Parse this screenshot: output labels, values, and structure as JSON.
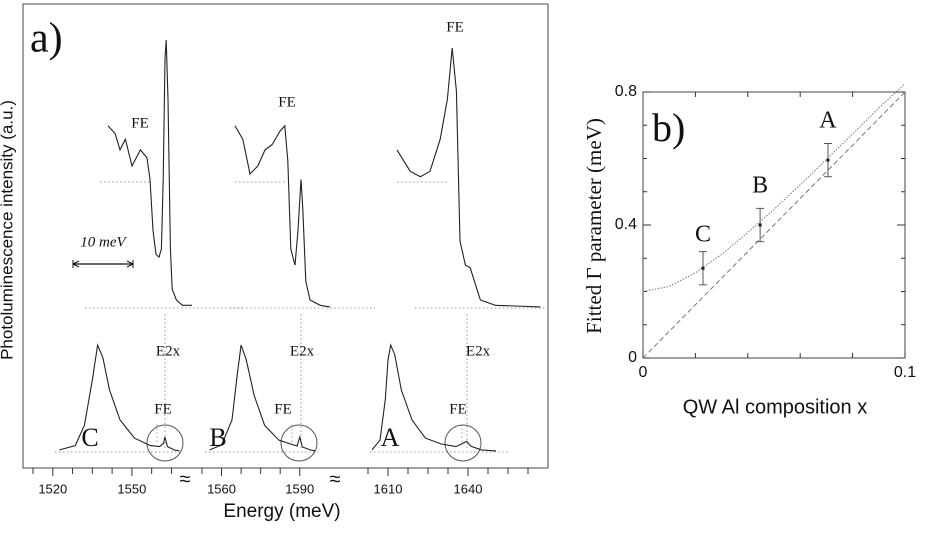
{
  "chart_data": [
    {
      "type": "spectra",
      "panel_label": "a)",
      "xlabel": "Energy (meV)",
      "ylabel": "Photoluminescence  intensity (a.u.)",
      "segments": [
        {
          "xlim": [
            1512.5,
            1569
          ],
          "xticks": [
            1520,
            1550
          ],
          "xminor": [
            1512.5,
            1527.5,
            1535,
            1542.5,
            1557.5,
            1565
          ]
        },
        {
          "xlim": [
            1552.5,
            1597
          ],
          "xticks": [
            1560,
            1590
          ],
          "xminor": [
            1552.5,
            1567.5,
            1575,
            1582.5
          ]
        },
        {
          "xlim": [
            1602.5,
            1670
          ],
          "xticks": [
            1610,
            1640
          ],
          "xminor": [
            1602.5,
            1617.5,
            1625,
            1632.5,
            1647.5,
            1655,
            1662.5
          ]
        }
      ],
      "scale_bar": {
        "label": "10 meV",
        "value": 10
      },
      "spectra": [
        {
          "label": "C",
          "labels": {
            "fe_zoom": "FE",
            "fe": "FE",
            "e2x": "E2x"
          },
          "pl": {
            "x": [
              1522.5,
              1528.5,
              1532,
              1535,
              1537,
              1539,
              1541.5,
              1545.5,
              1551,
              1557,
              1560.5,
              1562,
              1562.5,
              1563.5,
              1566,
              1568
            ],
            "y": [
              2,
              6,
              25,
              67,
              100,
              88,
              58,
              30,
              13,
              6,
              5,
              8,
              14,
              5,
              2,
              1
            ]
          },
          "zoom": {
            "x": [
              1552.8,
              1554.0,
              1554.8,
              1555.7,
              1556.8,
              1558.2,
              1559.3,
              1559.8,
              1560.3,
              1560.8,
              1561.3,
              1561.7,
              1562.0,
              1562.3,
              1562.5,
              1562.8,
              1563.2,
              1563.5,
              1564.2,
              1565.2,
              1566.8
            ],
            "y": [
              68,
              65,
              59,
              63,
              53,
              59,
              56,
              48,
              29,
              20,
              19,
              22,
              48,
              93,
              100,
              78,
              22,
              7,
              3,
              1,
              1
            ]
          }
        },
        {
          "label": "B",
          "labels": {
            "fe_zoom": "FE",
            "fe": "FE",
            "e2x": "E2x"
          },
          "pl": {
            "x": [
              1555.5,
              1560,
              1564,
              1566,
              1567.5,
              1569.5,
              1572.5,
              1576.5,
              1582,
              1586.5,
              1589,
              1590,
              1591,
              1594,
              1596
            ],
            "y": [
              2,
              6.5,
              30,
              72,
              100,
              86,
              53,
              25,
              11,
              7.5,
              5.6,
              14,
              4.7,
              2,
              1
            ]
          },
          "zoom": {
            "x": [
              1579.0,
              1580.3,
              1581.5,
              1582.8,
              1584.0,
              1585.2,
              1586.5,
              1587.3,
              1587.8,
              1588.3,
              1589.0,
              1589.5,
              1590.0,
              1590.3,
              1590.8,
              1591.5,
              1593.2,
              1594.8
            ],
            "y": [
              68,
              63,
              50,
              53,
              59,
              61,
              66,
              68,
              55,
              22,
              16,
              29,
              48,
              37,
              10,
              3,
              1,
              0.4
            ]
          }
        },
        {
          "label": "A",
          "labels": {
            "fe_zoom": "FE",
            "fe": "FE",
            "e2x": "E2x"
          },
          "pl": {
            "x": [
              1604,
              1607,
              1609,
              1610,
              1611,
              1612.5,
              1615,
              1619,
              1624,
              1630,
              1635.5,
              1638,
              1639.5,
              1641,
              1645,
              1650.5
            ],
            "y": [
              2,
              11,
              49,
              86,
              100,
              91,
              58,
              30,
              13,
              7.5,
              5,
              8,
              10,
              5.5,
              2,
              1
            ]
          },
          "zoom": {
            "x": [
              1628.3,
              1630.5,
              1632.2,
              1633.8,
              1635.5,
              1636.7,
              1637.5,
              1638.2,
              1638.8,
              1639.7,
              1640.5,
              1641.2,
              1642.2,
              1644.7,
              1652.2
            ],
            "y": [
              59,
              51,
              49,
              51,
              63,
              78,
              97,
              81,
              25,
              16,
              15,
              10,
              3,
              1,
              0.4
            ]
          }
        }
      ]
    },
    {
      "type": "line",
      "panel_label": "b)",
      "xlabel": "QW Al composition x",
      "ylabel": "Fitted Γ parameter (meV)",
      "xlim": [
        0,
        0.1
      ],
      "ylim": [
        0,
        0.8
      ],
      "xticks": [
        0,
        0.1
      ],
      "yticks": [
        0,
        0.4,
        0.8
      ],
      "xminor": [
        0.02,
        0.04,
        0.06,
        0.08
      ],
      "yminor": [
        0.1,
        0.2,
        0.3,
        0.5,
        0.6,
        0.7
      ],
      "series": [
        {
          "style": "dotted",
          "x": [
            0,
            0.01,
            0.02,
            0.03,
            0.04,
            0.05,
            0.06,
            0.07,
            0.08,
            0.09,
            0.1
          ],
          "values": [
            0.2,
            0.215,
            0.256,
            0.312,
            0.377,
            0.447,
            0.521,
            0.597,
            0.674,
            0.752,
            0.825
          ]
        },
        {
          "style": "dashed",
          "x": [
            0,
            0.1
          ],
          "values": [
            0,
            0.8
          ]
        },
        {
          "style": "errorbar",
          "x": [
            0.0229,
            0.0447,
            0.0706
          ],
          "values": [
            0.27,
            0.4,
            0.595
          ],
          "errors": [
            0.05,
            0.05,
            0.05
          ],
          "point_labels": [
            "C",
            "B",
            "A"
          ]
        }
      ]
    }
  ]
}
